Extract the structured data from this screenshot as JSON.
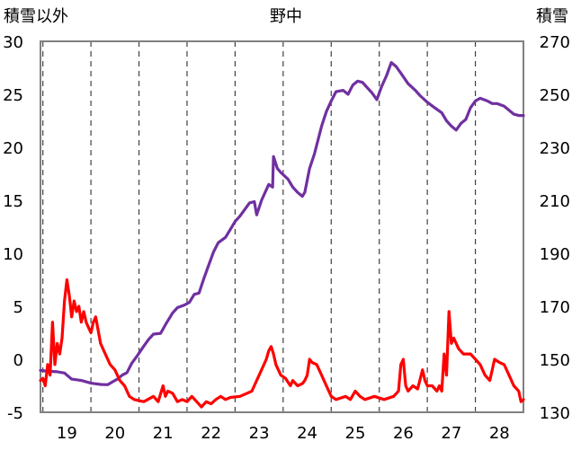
{
  "chart_data": {
    "type": "line",
    "title": "野中",
    "left_axis_label": "積雪以外",
    "right_axis_label": "積雪",
    "x_ticks": [
      "19",
      "20",
      "21",
      "22",
      "23",
      "24",
      "25",
      "26",
      "27",
      "28"
    ],
    "x_range": [
      18.45,
      28.5
    ],
    "left_ticks": [
      "-5",
      "0",
      "5",
      "10",
      "15",
      "20",
      "25",
      "30"
    ],
    "left_ylim": [
      -5,
      30
    ],
    "right_ticks": [
      "130",
      "150",
      "170",
      "190",
      "210",
      "230",
      "250",
      "270"
    ],
    "right_ylim": [
      130,
      270
    ],
    "grid": "vertical dashed at day boundaries",
    "series": [
      {
        "axis": "right",
        "color": "#7030a0",
        "points": [
          [
            18.45,
            145.8
          ],
          [
            18.6,
            145.5
          ],
          [
            18.8,
            145.3
          ],
          [
            18.95,
            144.8
          ],
          [
            19.1,
            142.5
          ],
          [
            19.3,
            142.0
          ],
          [
            19.5,
            141.0
          ],
          [
            19.7,
            140.5
          ],
          [
            19.85,
            140.4
          ],
          [
            19.95,
            141.5
          ],
          [
            20.05,
            142.5
          ],
          [
            20.15,
            144.0
          ],
          [
            20.25,
            145.0
          ],
          [
            20.35,
            148.5
          ],
          [
            20.45,
            151.0
          ],
          [
            20.6,
            155.0
          ],
          [
            20.7,
            157.5
          ],
          [
            20.8,
            159.5
          ],
          [
            20.95,
            159.8
          ],
          [
            21.05,
            163.0
          ],
          [
            21.2,
            167.5
          ],
          [
            21.3,
            169.5
          ],
          [
            21.45,
            170.5
          ],
          [
            21.55,
            171.5
          ],
          [
            21.65,
            174.5
          ],
          [
            21.75,
            175.0
          ],
          [
            21.85,
            180.5
          ],
          [
            21.95,
            185.5
          ],
          [
            22.05,
            190.5
          ],
          [
            22.15,
            194.0
          ],
          [
            22.3,
            196.0
          ],
          [
            22.4,
            199.0
          ],
          [
            22.5,
            202.0
          ],
          [
            22.6,
            204.0
          ],
          [
            22.7,
            206.5
          ],
          [
            22.8,
            209.0
          ],
          [
            22.9,
            209.5
          ],
          [
            22.95,
            204.5
          ],
          [
            23.05,
            210.0
          ],
          [
            23.2,
            216.0
          ],
          [
            23.28,
            215.0
          ],
          [
            23.3,
            226.5
          ],
          [
            23.38,
            222.0
          ],
          [
            23.45,
            220.5
          ],
          [
            23.6,
            218.0
          ],
          [
            23.7,
            215.0
          ],
          [
            23.8,
            213.0
          ],
          [
            23.9,
            211.5
          ],
          [
            23.95,
            213.0
          ],
          [
            24.05,
            222.0
          ],
          [
            24.15,
            227.5
          ],
          [
            24.3,
            238.0
          ],
          [
            24.4,
            243.5
          ],
          [
            24.5,
            247.5
          ],
          [
            24.6,
            251.0
          ],
          [
            24.75,
            251.5
          ],
          [
            24.85,
            250.0
          ],
          [
            24.95,
            253.5
          ],
          [
            25.05,
            255.0
          ],
          [
            25.15,
            254.5
          ],
          [
            25.25,
            252.5
          ],
          [
            25.35,
            250.5
          ],
          [
            25.45,
            248.0
          ],
          [
            25.55,
            253.0
          ],
          [
            25.65,
            257.0
          ],
          [
            25.75,
            262.0
          ],
          [
            25.85,
            260.5
          ],
          [
            25.95,
            258.0
          ],
          [
            26.1,
            254.0
          ],
          [
            26.25,
            251.5
          ],
          [
            26.35,
            249.5
          ],
          [
            26.5,
            247.0
          ],
          [
            26.65,
            245.0
          ],
          [
            26.8,
            243.0
          ],
          [
            26.9,
            240.0
          ],
          [
            27.0,
            238.0
          ],
          [
            27.1,
            236.5
          ],
          [
            27.2,
            239.0
          ],
          [
            27.3,
            240.5
          ],
          [
            27.4,
            245.0
          ],
          [
            27.5,
            247.5
          ],
          [
            27.6,
            248.5
          ],
          [
            27.75,
            247.5
          ],
          [
            27.85,
            246.5
          ],
          [
            27.95,
            246.5
          ],
          [
            28.1,
            245.5
          ],
          [
            28.2,
            244.0
          ],
          [
            28.3,
            242.5
          ],
          [
            28.4,
            242.0
          ],
          [
            28.5,
            242.0
          ]
        ]
      },
      {
        "axis": "left",
        "color": "#ff0000",
        "points": [
          [
            18.45,
            -2.0
          ],
          [
            18.5,
            -1.8
          ],
          [
            18.55,
            -2.5
          ],
          [
            18.6,
            -0.5
          ],
          [
            18.65,
            -1.5
          ],
          [
            18.7,
            3.5
          ],
          [
            18.75,
            -0.5
          ],
          [
            18.8,
            1.5
          ],
          [
            18.85,
            0.5
          ],
          [
            18.9,
            2.0
          ],
          [
            18.95,
            5.5
          ],
          [
            19.0,
            7.5
          ],
          [
            19.05,
            6.0
          ],
          [
            19.1,
            4.0
          ],
          [
            19.15,
            5.5
          ],
          [
            19.2,
            4.5
          ],
          [
            19.25,
            5.0
          ],
          [
            19.3,
            3.5
          ],
          [
            19.35,
            4.5
          ],
          [
            19.4,
            3.5
          ],
          [
            19.45,
            3.0
          ],
          [
            19.5,
            2.5
          ],
          [
            19.55,
            3.5
          ],
          [
            19.6,
            4.0
          ],
          [
            19.7,
            1.5
          ],
          [
            19.8,
            0.5
          ],
          [
            19.9,
            -0.5
          ],
          [
            20.0,
            -1.0
          ],
          [
            20.1,
            -2.0
          ],
          [
            20.2,
            -2.5
          ],
          [
            20.3,
            -3.5
          ],
          [
            20.4,
            -3.8
          ],
          [
            20.6,
            -4.0
          ],
          [
            20.8,
            -3.5
          ],
          [
            20.9,
            -4.0
          ],
          [
            21.0,
            -2.5
          ],
          [
            21.05,
            -3.5
          ],
          [
            21.1,
            -3.0
          ],
          [
            21.2,
            -3.2
          ],
          [
            21.3,
            -4.0
          ],
          [
            21.4,
            -3.8
          ],
          [
            21.5,
            -4.0
          ],
          [
            21.6,
            -3.5
          ],
          [
            21.7,
            -4.0
          ],
          [
            21.8,
            -4.5
          ],
          [
            21.9,
            -4.0
          ],
          [
            22.0,
            -4.2
          ],
          [
            22.1,
            -3.8
          ],
          [
            22.2,
            -3.5
          ],
          [
            22.3,
            -3.8
          ],
          [
            22.4,
            -3.6
          ],
          [
            22.6,
            -3.5
          ],
          [
            22.75,
            -3.2
          ],
          [
            22.85,
            -3.0
          ],
          [
            22.95,
            -2.0
          ],
          [
            23.05,
            -1.0
          ],
          [
            23.15,
            0.0
          ],
          [
            23.2,
            0.8
          ],
          [
            23.25,
            1.2
          ],
          [
            23.3,
            0.5
          ],
          [
            23.35,
            -0.5
          ],
          [
            23.45,
            -1.5
          ],
          [
            23.55,
            -1.8
          ],
          [
            23.65,
            -2.5
          ],
          [
            23.7,
            -2.0
          ],
          [
            23.8,
            -2.5
          ],
          [
            23.9,
            -2.3
          ],
          [
            23.95,
            -2.0
          ],
          [
            24.0,
            -1.5
          ],
          [
            24.05,
            0.0
          ],
          [
            24.1,
            -0.3
          ],
          [
            24.2,
            -0.5
          ],
          [
            24.3,
            -1.5
          ],
          [
            24.4,
            -2.5
          ],
          [
            24.5,
            -3.5
          ],
          [
            24.6,
            -3.8
          ],
          [
            24.8,
            -3.5
          ],
          [
            24.9,
            -3.8
          ],
          [
            25.0,
            -3.0
          ],
          [
            25.1,
            -3.5
          ],
          [
            25.2,
            -3.8
          ],
          [
            25.4,
            -3.5
          ],
          [
            25.6,
            -3.8
          ],
          [
            25.8,
            -3.5
          ],
          [
            25.9,
            -3.0
          ],
          [
            25.95,
            -0.5
          ],
          [
            26.0,
            0.0
          ],
          [
            26.05,
            -2.5
          ],
          [
            26.1,
            -3.0
          ],
          [
            26.2,
            -2.5
          ],
          [
            26.3,
            -2.8
          ],
          [
            26.4,
            -1.0
          ],
          [
            26.45,
            -2.0
          ],
          [
            26.5,
            -2.5
          ],
          [
            26.6,
            -2.5
          ],
          [
            26.7,
            -3.0
          ],
          [
            26.75,
            -2.5
          ],
          [
            26.8,
            -3.0
          ],
          [
            26.85,
            0.5
          ],
          [
            26.9,
            -1.5
          ],
          [
            26.95,
            4.5
          ],
          [
            27.0,
            1.5
          ],
          [
            27.05,
            2.0
          ],
          [
            27.15,
            1.0
          ],
          [
            27.25,
            0.5
          ],
          [
            27.4,
            0.5
          ],
          [
            27.5,
            0.0
          ],
          [
            27.6,
            -0.5
          ],
          [
            27.7,
            -1.5
          ],
          [
            27.8,
            -2.0
          ],
          [
            27.85,
            -1.0
          ],
          [
            27.9,
            0.0
          ],
          [
            28.0,
            -0.3
          ],
          [
            28.1,
            -0.5
          ],
          [
            28.2,
            -1.5
          ],
          [
            28.3,
            -2.5
          ],
          [
            28.4,
            -3.0
          ],
          [
            28.45,
            -4.0
          ],
          [
            28.5,
            -3.8
          ]
        ]
      }
    ]
  }
}
